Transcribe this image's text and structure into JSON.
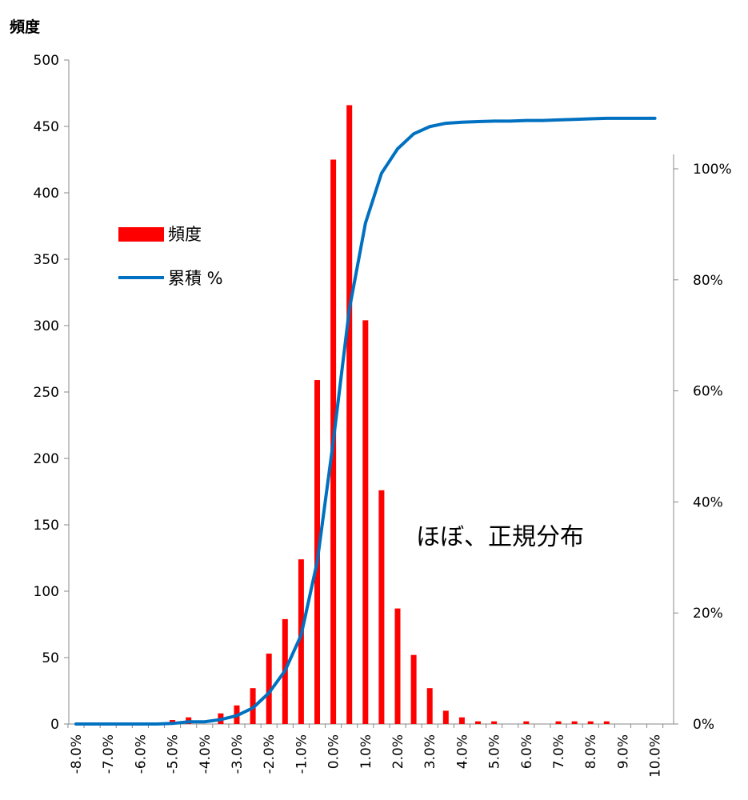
{
  "chart_data": {
    "type": "bar",
    "ylabel": "頻度",
    "annotation": "ほぼ、正規分布",
    "categories": [
      "-8.0%",
      "-7.5%",
      "-7.0%",
      "-6.5%",
      "-6.0%",
      "-5.5%",
      "-5.0%",
      "-4.5%",
      "-4.0%",
      "-3.5%",
      "-3.0%",
      "-2.5%",
      "-2.0%",
      "-1.5%",
      "-1.0%",
      "-0.5%",
      "0.0%",
      "0.5%",
      "1.0%",
      "1.5%",
      "2.0%",
      "2.5%",
      "3.0%",
      "3.5%",
      "4.0%",
      "4.5%",
      "5.0%",
      "5.5%",
      "6.0%",
      "6.5%",
      "7.0%",
      "7.5%",
      "8.0%",
      "8.5%",
      "9.0%",
      "9.5%",
      "10.0%"
    ],
    "tick_labels_shown": [
      "-8.0%",
      "-7.0%",
      "-6.0%",
      "-5.0%",
      "-4.0%",
      "-3.0%",
      "-2.0%",
      "-1.0%",
      "0.0%",
      "1.0%",
      "2.0%",
      "3.0%",
      "4.0%",
      "5.0%",
      "6.0%",
      "7.0%",
      "8.0%",
      "9.0%",
      "10.0%"
    ],
    "series": [
      {
        "name": "頻度",
        "axis": "left",
        "color": "#ff0000",
        "values": [
          0,
          0,
          0,
          0,
          0,
          0,
          3,
          5,
          0,
          8,
          14,
          27,
          53,
          79,
          124,
          259,
          425,
          466,
          304,
          176,
          87,
          52,
          27,
          10,
          5,
          2,
          2,
          0,
          2,
          0,
          2,
          2,
          2,
          2,
          0,
          0,
          0
        ]
      },
      {
        "name": "累積 %",
        "axis": "right",
        "color": "#0070c0",
        "values": [
          0,
          0,
          0,
          0,
          0,
          0,
          0.1,
          0.4,
          0.4,
          0.8,
          1.5,
          2.9,
          5.6,
          9.6,
          16.0,
          29.2,
          50.9,
          74.7,
          90.2,
          99.2,
          103.6,
          106.3,
          107.6,
          108.2,
          108.4,
          108.5,
          108.6,
          108.6,
          108.7,
          108.7,
          108.8,
          108.9,
          109.0,
          109.1,
          109.1,
          109.1,
          109.1
        ]
      }
    ],
    "ylim_left": [
      0,
      500
    ],
    "yticks_left": [
      "0",
      "50",
      "100",
      "150",
      "200",
      "250",
      "300",
      "350",
      "400",
      "450",
      "500"
    ],
    "ylim_right": [
      0,
      120
    ],
    "yticks_right": [
      "0%",
      "20%",
      "40%",
      "60%",
      "80%",
      "100%"
    ],
    "legend": {
      "position": "upper-left"
    },
    "grid": false
  }
}
